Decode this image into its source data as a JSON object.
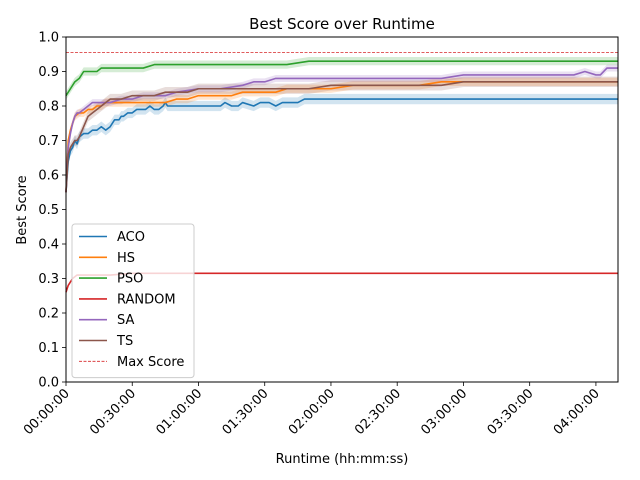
{
  "chart_data": {
    "type": "line",
    "title": "Best Score over Runtime",
    "xlabel": "Runtime (hh:mm:ss)",
    "ylabel": "Best Score",
    "xlim": [
      0,
      250
    ],
    "ylim": [
      0,
      1.0
    ],
    "x_unit": "minutes",
    "x_ticks": [
      0,
      30,
      60,
      90,
      120,
      150,
      180,
      210,
      240
    ],
    "x_tick_labels": [
      "00:00:00",
      "00:30:00",
      "01:00:00",
      "01:30:00",
      "02:00:00",
      "02:30:00",
      "03:00:00",
      "03:30:00",
      "04:00:00"
    ],
    "y_ticks": [
      0.0,
      0.1,
      0.2,
      0.3,
      0.4,
      0.5,
      0.6,
      0.7,
      0.8,
      0.9,
      1.0
    ],
    "y_tick_labels": [
      "0.0",
      "0.1",
      "0.2",
      "0.3",
      "0.4",
      "0.5",
      "0.6",
      "0.7",
      "0.8",
      "0.9",
      "1.0"
    ],
    "grid": false,
    "legend_position": "lower-left",
    "reference_line": {
      "name": "Max Score",
      "y": 0.955,
      "color": "#d62728",
      "style": "dashed"
    },
    "series": [
      {
        "name": "ACO",
        "color": "#1f77b4",
        "band": 0.015,
        "x": [
          0,
          1,
          2,
          3,
          4,
          5,
          6,
          8,
          10,
          12,
          14,
          16,
          18,
          20,
          22,
          24,
          25,
          26,
          28,
          30,
          32,
          34,
          36,
          38,
          40,
          42,
          44,
          45,
          46,
          50,
          55,
          60,
          65,
          70,
          72,
          75,
          78,
          80,
          85,
          88,
          90,
          92,
          95,
          98,
          100,
          105,
          108,
          110,
          120,
          130,
          140,
          150,
          160,
          170,
          180,
          190,
          200,
          210,
          220,
          230,
          240,
          250
        ],
        "y": [
          0.55,
          0.64,
          0.67,
          0.68,
          0.7,
          0.69,
          0.71,
          0.72,
          0.72,
          0.73,
          0.73,
          0.74,
          0.73,
          0.74,
          0.76,
          0.76,
          0.77,
          0.77,
          0.78,
          0.78,
          0.79,
          0.79,
          0.79,
          0.8,
          0.79,
          0.79,
          0.8,
          0.81,
          0.8,
          0.8,
          0.8,
          0.8,
          0.8,
          0.8,
          0.81,
          0.8,
          0.8,
          0.81,
          0.8,
          0.81,
          0.81,
          0.81,
          0.8,
          0.81,
          0.81,
          0.81,
          0.82,
          0.82,
          0.82,
          0.82,
          0.82,
          0.82,
          0.82,
          0.82,
          0.82,
          0.82,
          0.82,
          0.82,
          0.82,
          0.82,
          0.82,
          0.82
        ]
      },
      {
        "name": "HS",
        "color": "#ff7f0e",
        "band": 0.012,
        "x": [
          0,
          1,
          2,
          3,
          4,
          6,
          8,
          10,
          12,
          14,
          16,
          18,
          20,
          25,
          30,
          35,
          40,
          45,
          50,
          55,
          60,
          65,
          70,
          75,
          80,
          85,
          90,
          95,
          100,
          110,
          120,
          130,
          140,
          150,
          160,
          170,
          180,
          190,
          200,
          210,
          220,
          230,
          240,
          250
        ],
        "y": [
          0.55,
          0.7,
          0.73,
          0.75,
          0.77,
          0.78,
          0.78,
          0.79,
          0.79,
          0.8,
          0.8,
          0.81,
          0.81,
          0.81,
          0.81,
          0.81,
          0.81,
          0.81,
          0.82,
          0.82,
          0.83,
          0.83,
          0.83,
          0.83,
          0.84,
          0.84,
          0.84,
          0.84,
          0.85,
          0.85,
          0.85,
          0.86,
          0.86,
          0.86,
          0.86,
          0.87,
          0.87,
          0.87,
          0.87,
          0.87,
          0.87,
          0.87,
          0.87,
          0.87
        ]
      },
      {
        "name": "PSO",
        "color": "#2ca02c",
        "band": 0.012,
        "x": [
          0,
          2,
          4,
          6,
          8,
          10,
          12,
          14,
          16,
          18,
          20,
          25,
          30,
          35,
          40,
          50,
          60,
          70,
          73,
          80,
          90,
          100,
          110,
          120,
          130,
          140,
          150,
          160,
          170,
          180,
          190,
          200,
          210,
          220,
          230,
          240,
          250
        ],
        "y": [
          0.83,
          0.85,
          0.87,
          0.88,
          0.9,
          0.9,
          0.9,
          0.9,
          0.91,
          0.91,
          0.91,
          0.91,
          0.91,
          0.91,
          0.92,
          0.92,
          0.92,
          0.92,
          0.92,
          0.92,
          0.92,
          0.92,
          0.93,
          0.93,
          0.93,
          0.93,
          0.93,
          0.93,
          0.93,
          0.93,
          0.93,
          0.93,
          0.93,
          0.93,
          0.93,
          0.93,
          0.93
        ]
      },
      {
        "name": "RANDOM",
        "color": "#d62728",
        "band": 0,
        "x": [
          0,
          1,
          2,
          3,
          5,
          8,
          10,
          15,
          20,
          30,
          40,
          50,
          60,
          100,
          150,
          200,
          250
        ],
        "y": [
          0.26,
          0.28,
          0.29,
          0.3,
          0.31,
          0.31,
          0.31,
          0.31,
          0.31,
          0.315,
          0.315,
          0.315,
          0.315,
          0.315,
          0.315,
          0.315,
          0.315
        ]
      },
      {
        "name": "SA",
        "color": "#9467bd",
        "band": 0.01,
        "x": [
          0,
          1,
          2,
          3,
          4,
          5,
          6,
          8,
          10,
          12,
          14,
          16,
          18,
          20,
          25,
          30,
          35,
          40,
          45,
          50,
          60,
          70,
          80,
          85,
          90,
          95,
          100,
          110,
          120,
          130,
          140,
          150,
          160,
          170,
          180,
          190,
          200,
          210,
          220,
          230,
          235,
          240,
          242,
          245,
          250
        ],
        "y": [
          0.55,
          0.68,
          0.72,
          0.75,
          0.77,
          0.78,
          0.78,
          0.79,
          0.8,
          0.81,
          0.81,
          0.81,
          0.81,
          0.81,
          0.82,
          0.82,
          0.83,
          0.83,
          0.83,
          0.84,
          0.85,
          0.85,
          0.86,
          0.87,
          0.87,
          0.88,
          0.88,
          0.88,
          0.88,
          0.88,
          0.88,
          0.88,
          0.88,
          0.88,
          0.89,
          0.89,
          0.89,
          0.89,
          0.89,
          0.89,
          0.9,
          0.89,
          0.89,
          0.91,
          0.91
        ]
      },
      {
        "name": "TS",
        "color": "#8c564b",
        "band": 0.015,
        "x": [
          0,
          1,
          2,
          3,
          4,
          5,
          6,
          8,
          10,
          12,
          14,
          16,
          18,
          20,
          25,
          30,
          35,
          40,
          45,
          50,
          55,
          60,
          70,
          80,
          90,
          100,
          110,
          120,
          130,
          140,
          150,
          160,
          170,
          180,
          190,
          200,
          210,
          220,
          230,
          240,
          250
        ],
        "y": [
          0.55,
          0.66,
          0.68,
          0.69,
          0.7,
          0.7,
          0.71,
          0.74,
          0.77,
          0.78,
          0.79,
          0.8,
          0.81,
          0.82,
          0.82,
          0.83,
          0.83,
          0.83,
          0.84,
          0.84,
          0.84,
          0.85,
          0.85,
          0.85,
          0.85,
          0.85,
          0.85,
          0.86,
          0.86,
          0.86,
          0.86,
          0.86,
          0.86,
          0.87,
          0.87,
          0.87,
          0.87,
          0.87,
          0.87,
          0.87,
          0.87
        ]
      }
    ]
  }
}
